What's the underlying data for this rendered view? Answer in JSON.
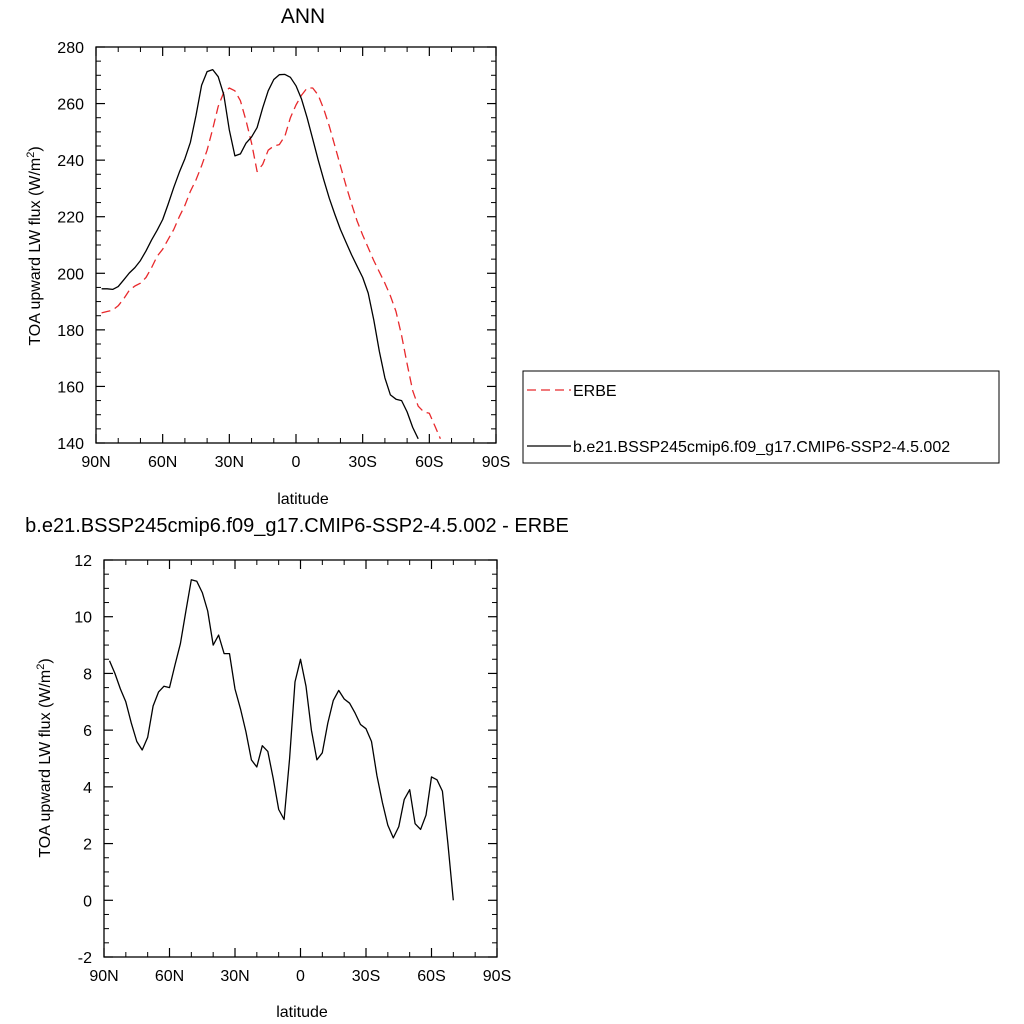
{
  "chart_data": [
    {
      "type": "line",
      "title": "ANN",
      "xlabel": "latitude",
      "ylabel": "TOA upward LW flux (W/m",
      "ylabel_sup": "2",
      "ylabel_close": ")",
      "xlim": [
        90,
        -90
      ],
      "ylim": [
        140,
        280
      ],
      "yticks": [
        140,
        160,
        180,
        200,
        220,
        240,
        260,
        280
      ],
      "xticks": [
        {
          "value": 90,
          "label": "90N"
        },
        {
          "value": 60,
          "label": "60N"
        },
        {
          "value": 30,
          "label": "30N"
        },
        {
          "value": 0,
          "label": "0"
        },
        {
          "value": -30,
          "label": "30S"
        },
        {
          "value": -60,
          "label": "60S"
        },
        {
          "value": -90,
          "label": "90S"
        }
      ],
      "legend_position": "right",
      "series": [
        {
          "name": "ERBE",
          "color": "#e8292c",
          "dash": "dashed",
          "points": [
            [
              87.5,
              186
            ],
            [
              85,
              186.5
            ],
            [
              82.5,
              187
            ],
            [
              80,
              188.5
            ],
            [
              77.5,
              191
            ],
            [
              75,
              194
            ],
            [
              72.5,
              195.5
            ],
            [
              70,
              196.5
            ],
            [
              67.5,
              198.5
            ],
            [
              65,
              202
            ],
            [
              62.5,
              206
            ],
            [
              60,
              208.5
            ],
            [
              57.5,
              212
            ],
            [
              55,
              215.5
            ],
            [
              52.5,
              220
            ],
            [
              50,
              224
            ],
            [
              47.5,
              229
            ],
            [
              45,
              233
            ],
            [
              42.5,
              238
            ],
            [
              40,
              243.5
            ],
            [
              37.5,
              251
            ],
            [
              35,
              259
            ],
            [
              32.5,
              264
            ],
            [
              30,
              265.5
            ],
            [
              27.5,
              264.5
            ],
            [
              25,
              261
            ],
            [
              22.5,
              254
            ],
            [
              20,
              246
            ],
            [
              17.5,
              236
            ],
            [
              15,
              238.5
            ],
            [
              12.5,
              243.5
            ],
            [
              10,
              245
            ],
            [
              7.5,
              245.5
            ],
            [
              5,
              248.5
            ],
            [
              2.5,
              255
            ],
            [
              0,
              259.5
            ],
            [
              -2.5,
              263
            ],
            [
              -5,
              265.5
            ],
            [
              -7.5,
              265.5
            ],
            [
              -10,
              263
            ],
            [
              -12.5,
              258
            ],
            [
              -15,
              252
            ],
            [
              -17.5,
              245
            ],
            [
              -20,
              238
            ],
            [
              -22.5,
              231
            ],
            [
              -25,
              224.5
            ],
            [
              -27.5,
              218.5
            ],
            [
              -30,
              213.5
            ],
            [
              -32.5,
              209
            ],
            [
              -35,
              204.5
            ],
            [
              -37.5,
              200.5
            ],
            [
              -40,
              196.5
            ],
            [
              -42.5,
              192
            ],
            [
              -45,
              186.5
            ],
            [
              -47.5,
              178
            ],
            [
              -50,
              168
            ],
            [
              -52.5,
              158.5
            ],
            [
              -55,
              153
            ],
            [
              -57.5,
              151
            ],
            [
              -60,
              150.5
            ],
            [
              -62.5,
              146
            ],
            [
              -65,
              141.5
            ]
          ]
        },
        {
          "name": "b.e21.BSSP245cmip6.f09_g17.CMIP6-SSP2-4.5.002",
          "color": "#000000",
          "dash": "solid",
          "points": [
            [
              87.5,
              194.5
            ],
            [
              85,
              194.5
            ],
            [
              82.5,
              194.3
            ],
            [
              80,
              195.3
            ],
            [
              77.5,
              197.7
            ],
            [
              75,
              200.1
            ],
            [
              72.5,
              202
            ],
            [
              70,
              204.5
            ],
            [
              67.5,
              207.9
            ],
            [
              65,
              211.8
            ],
            [
              62.5,
              215.2
            ],
            [
              60,
              219
            ],
            [
              57.5,
              224.5
            ],
            [
              55,
              230.4
            ],
            [
              52.5,
              235.7
            ],
            [
              50,
              240.5
            ],
            [
              47.5,
              246.3
            ],
            [
              45,
              255.8
            ],
            [
              42.5,
              266.5
            ],
            [
              40,
              271.3
            ],
            [
              37.5,
              272
            ],
            [
              35,
              269.5
            ],
            [
              32.5,
              263.1
            ],
            [
              30,
              250.7
            ],
            [
              27.5,
              241.5
            ],
            [
              25,
              242.2
            ],
            [
              22.5,
              246
            ],
            [
              20,
              248.2
            ],
            [
              17.5,
              251.5
            ],
            [
              15,
              258.5
            ],
            [
              12.5,
              264.5
            ],
            [
              10,
              268.5
            ],
            [
              7.5,
              270.2
            ],
            [
              5,
              270.3
            ],
            [
              2.5,
              269.3
            ],
            [
              0,
              266.3
            ],
            [
              -2.5,
              261.5
            ],
            [
              -5,
              255
            ],
            [
              -7.5,
              247.5
            ],
            [
              -10,
              240
            ],
            [
              -12.5,
              233
            ],
            [
              -15,
              226.5
            ],
            [
              -17.5,
              220.8
            ],
            [
              -20,
              215.5
            ],
            [
              -22.5,
              211
            ],
            [
              -25,
              206.5
            ],
            [
              -27.5,
              202.5
            ],
            [
              -30,
              198.5
            ],
            [
              -32.5,
              193
            ],
            [
              -35,
              183.5
            ],
            [
              -37.5,
              172.5
            ],
            [
              -40,
              163
            ],
            [
              -42.5,
              157
            ],
            [
              -45,
              155.5
            ],
            [
              -47.5,
              155
            ],
            [
              -50,
              151
            ],
            [
              -52.5,
              145.5
            ],
            [
              -55,
              141.5
            ]
          ]
        }
      ]
    },
    {
      "type": "line",
      "title": "b.e21.BSSP245cmip6.f09_g17.CMIP6-SSP2-4.5.002 - ERBE",
      "xlabel": "latitude",
      "ylabel": "TOA upward LW flux (W/m",
      "ylabel_sup": "2",
      "ylabel_close": ")",
      "xlim": [
        90,
        -90
      ],
      "ylim": [
        -2,
        12
      ],
      "yticks": [
        -2,
        0,
        2,
        4,
        6,
        8,
        10,
        12
      ],
      "xticks": [
        {
          "value": 90,
          "label": "90N"
        },
        {
          "value": 60,
          "label": "60N"
        },
        {
          "value": 30,
          "label": "30N"
        },
        {
          "value": 0,
          "label": "0"
        },
        {
          "value": -30,
          "label": "30S"
        },
        {
          "value": -60,
          "label": "60S"
        },
        {
          "value": -90,
          "label": "90S"
        }
      ],
      "series": [
        {
          "color": "#000000",
          "dash": "solid",
          "points": [
            [
              87.5,
              8.45
            ],
            [
              85,
              8
            ],
            [
              82.5,
              7.45
            ],
            [
              80,
              7
            ],
            [
              77.5,
              6.25
            ],
            [
              75,
              5.6
            ],
            [
              72.5,
              5.3
            ],
            [
              70,
              5.75
            ],
            [
              67.5,
              6.85
            ],
            [
              65,
              7.35
            ],
            [
              62.5,
              7.55
            ],
            [
              60,
              7.5
            ],
            [
              57.5,
              8.3
            ],
            [
              55,
              9.05
            ],
            [
              52.5,
              10.2
            ],
            [
              50,
              11.3
            ],
            [
              47.5,
              11.25
            ],
            [
              45,
              10.85
            ],
            [
              42.5,
              10.2
            ],
            [
              40,
              9
            ],
            [
              37.5,
              9.35
            ],
            [
              35,
              8.7
            ],
            [
              32.5,
              8.7
            ],
            [
              30,
              7.45
            ],
            [
              27.5,
              6.75
            ],
            [
              25,
              5.95
            ],
            [
              22.5,
              4.95
            ],
            [
              20,
              4.7
            ],
            [
              17.5,
              5.45
            ],
            [
              15,
              5.25
            ],
            [
              12.5,
              4.3
            ],
            [
              10,
              3.2
            ],
            [
              7.5,
              2.85
            ],
            [
              5,
              5
            ],
            [
              2.5,
              7.7
            ],
            [
              0,
              8.5
            ],
            [
              -2.5,
              7.55
            ],
            [
              -5,
              6
            ],
            [
              -7.5,
              4.95
            ],
            [
              -10,
              5.2
            ],
            [
              -12.5,
              6.25
            ],
            [
              -15,
              7.05
            ],
            [
              -17.5,
              7.4
            ],
            [
              -20,
              7.1
            ],
            [
              -22.5,
              6.95
            ],
            [
              -25,
              6.6
            ],
            [
              -27.5,
              6.2
            ],
            [
              -30,
              6.05
            ],
            [
              -32.5,
              5.6
            ],
            [
              -35,
              4.4
            ],
            [
              -37.5,
              3.45
            ],
            [
              -40,
              2.65
            ],
            [
              -42.5,
              2.2
            ],
            [
              -45,
              2.6
            ],
            [
              -47.5,
              3.55
            ],
            [
              -50,
              3.9
            ],
            [
              -52.5,
              2.7
            ],
            [
              -55,
              2.5
            ],
            [
              -57.5,
              3
            ],
            [
              -60,
              4.35
            ],
            [
              -62.5,
              4.25
            ],
            [
              -65,
              3.85
            ],
            [
              -67.5,
              2
            ],
            [
              -70,
              0
            ]
          ]
        }
      ]
    }
  ]
}
